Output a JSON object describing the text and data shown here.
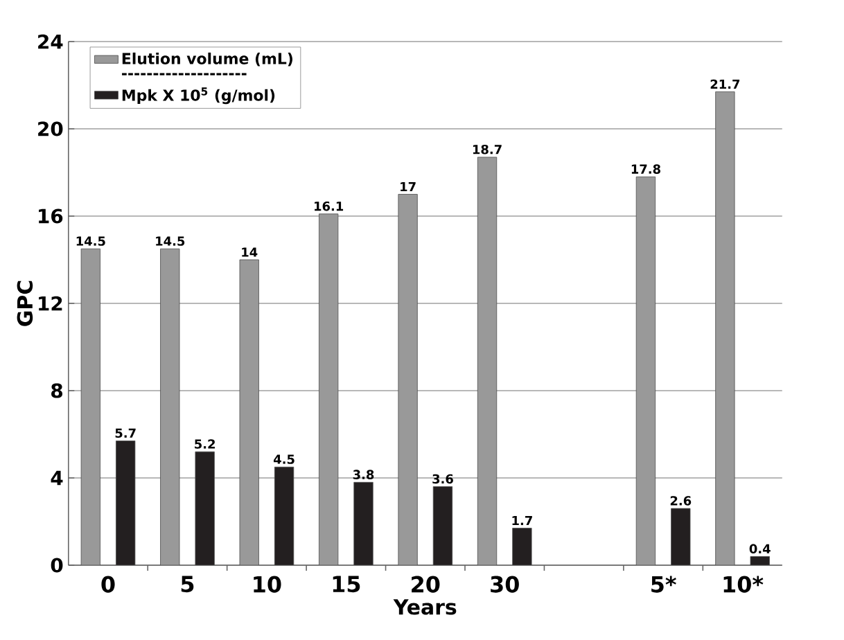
{
  "chart_data": {
    "type": "bar",
    "xlabel": "Years",
    "ylabel": "GPC",
    "categories": [
      "0",
      "5",
      "10",
      "15",
      "20",
      "30",
      null,
      "5*",
      "10*"
    ],
    "series": [
      {
        "name": "Elution volume (mL)",
        "color": "#999999",
        "values": [
          14.5,
          14.5,
          14,
          16.1,
          17,
          18.7,
          null,
          17.8,
          21.7
        ]
      },
      {
        "name": "Mpk X 10$^{5}$ (g/mol)",
        "color": "#231f20",
        "values": [
          5.7,
          5.2,
          4.5,
          3.8,
          3.6,
          1.7,
          null,
          2.6,
          0.4
        ]
      }
    ],
    "annotations": [
      "--------------------"
    ],
    "ylim": [
      0,
      24
    ],
    "yticks": [
      0,
      4,
      8,
      12,
      16,
      20,
      24
    ],
    "grid": "y",
    "legend": "top left",
    "data_labels": true
  }
}
